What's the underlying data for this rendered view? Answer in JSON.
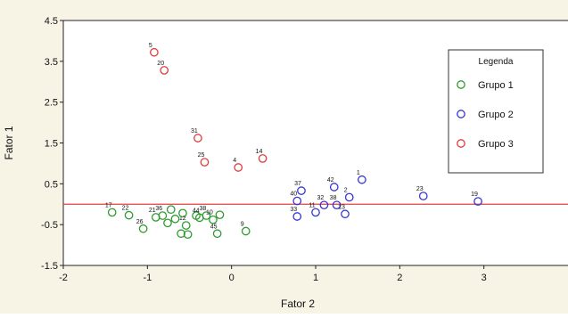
{
  "chart_data": {
    "type": "scatter",
    "title": "",
    "xlabel": "Fator 2",
    "ylabel": "Fator 1",
    "xlim": [
      -2,
      4
    ],
    "ylim": [
      -1.5,
      4.5
    ],
    "x_ticks": [
      -2,
      -1,
      0,
      1,
      2,
      3
    ],
    "x_tick_labels": [
      "-2",
      "-1",
      "0",
      "1",
      "2",
      "3"
    ],
    "y_ticks": [
      -1.5,
      -0.5,
      0.5,
      1.5,
      2.5,
      3.5,
      4.5
    ],
    "y_tick_labels": [
      "-1.5",
      "-0.5",
      "0.5",
      "1.5",
      "2.5",
      "3.5",
      "4.5"
    ],
    "grid": false,
    "reference_line": {
      "y": 0.0,
      "color": "#e04040"
    },
    "legend": {
      "title": "Legenda",
      "position": "top-right"
    },
    "series": [
      {
        "name": "Grupo 1",
        "color": "#2e9b2e",
        "points": [
          {
            "label": "17",
            "x": -1.42,
            "y": -0.2
          },
          {
            "label": "22",
            "x": -1.22,
            "y": -0.27
          },
          {
            "label": "26",
            "x": -1.05,
            "y": -0.6
          },
          {
            "label": "21",
            "x": -0.9,
            "y": -0.32
          },
          {
            "label": "36",
            "x": -0.82,
            "y": -0.28
          },
          {
            "label": "",
            "x": -0.76,
            "y": -0.46
          },
          {
            "label": "",
            "x": -0.72,
            "y": -0.13
          },
          {
            "label": "",
            "x": -0.67,
            "y": -0.36
          },
          {
            "label": "",
            "x": -0.6,
            "y": -0.72
          },
          {
            "label": "12",
            "x": -0.54,
            "y": -0.52
          },
          {
            "label": "",
            "x": -0.52,
            "y": -0.74
          },
          {
            "label": "",
            "x": -0.58,
            "y": -0.22
          },
          {
            "label": "",
            "x": -0.42,
            "y": -0.28
          },
          {
            "label": "44",
            "x": -0.38,
            "y": -0.33
          },
          {
            "label": "38",
            "x": -0.3,
            "y": -0.28
          },
          {
            "label": "10",
            "x": -0.22,
            "y": -0.38
          },
          {
            "label": "",
            "x": -0.14,
            "y": -0.26
          },
          {
            "label": "45",
            "x": -0.17,
            "y": -0.72
          },
          {
            "label": "9",
            "x": 0.17,
            "y": -0.66
          }
        ]
      },
      {
        "name": "Grupo 2",
        "color": "#3535d8",
        "points": [
          {
            "label": "1",
            "x": 1.55,
            "y": 0.6
          },
          {
            "label": "42",
            "x": 1.22,
            "y": 0.42
          },
          {
            "label": "37",
            "x": 0.83,
            "y": 0.33
          },
          {
            "label": "40",
            "x": 0.78,
            "y": 0.08
          },
          {
            "label": "33",
            "x": 0.78,
            "y": -0.3
          },
          {
            "label": "11",
            "x": 1.0,
            "y": -0.2
          },
          {
            "label": "32",
            "x": 1.1,
            "y": -0.02
          },
          {
            "label": "38",
            "x": 1.25,
            "y": -0.02
          },
          {
            "label": "2",
            "x": 1.4,
            "y": 0.17
          },
          {
            "label": "13",
            "x": 1.35,
            "y": -0.24
          },
          {
            "label": "23",
            "x": 2.28,
            "y": 0.2
          },
          {
            "label": "19",
            "x": 2.93,
            "y": 0.07
          }
        ]
      },
      {
        "name": "Grupo 3",
        "color": "#e03b3b",
        "points": [
          {
            "label": "5",
            "x": -0.92,
            "y": 3.72
          },
          {
            "label": "20",
            "x": -0.8,
            "y": 3.28
          },
          {
            "label": "31",
            "x": -0.4,
            "y": 1.62
          },
          {
            "label": "25",
            "x": -0.32,
            "y": 1.03
          },
          {
            "label": "4",
            "x": 0.08,
            "y": 0.9
          },
          {
            "label": "14",
            "x": 0.37,
            "y": 1.12
          }
        ]
      }
    ]
  }
}
